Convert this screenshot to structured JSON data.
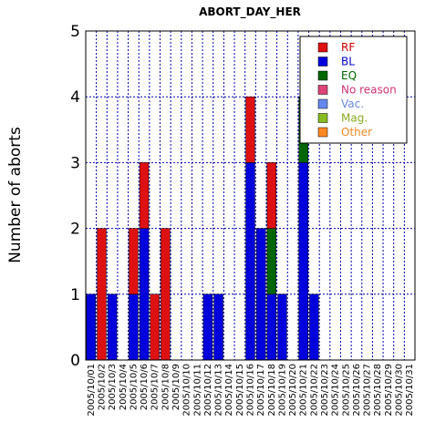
{
  "chart_data": {
    "type": "bar",
    "stacked": true,
    "title": "ABORT_DAY_HER",
    "xlabel": "",
    "ylabel": "Number of aborts",
    "ylim": [
      0,
      5
    ],
    "yticks": [
      0,
      1,
      2,
      3,
      4,
      5
    ],
    "grid": true,
    "legend_position": "top-right",
    "categories": [
      "2005/10/01",
      "2005/10/02",
      "2005/10/03",
      "2005/10/04",
      "2005/10/05",
      "2005/10/06",
      "2005/10/07",
      "2005/10/08",
      "2005/10/09",
      "2005/10/10",
      "2005/10/11",
      "2005/10/12",
      "2005/10/13",
      "2005/10/14",
      "2005/10/15",
      "2005/10/16",
      "2005/10/17",
      "2005/10/18",
      "2005/10/19",
      "2005/10/20",
      "2005/10/21",
      "2005/10/22",
      "2005/10/23",
      "2005/10/24",
      "2005/10/25",
      "2005/10/26",
      "2005/10/27",
      "2005/10/28",
      "2005/10/29",
      "2005/10/30",
      "2005/10/31"
    ],
    "x_tick_labels": [
      "2005/10/01",
      "2005/10/2",
      "2005/10/3",
      "2005/10/4",
      "2005/10/5",
      "2005/10/6",
      "2005/10/7",
      "2005/10/8",
      "2005/10/9",
      "2005/10/10",
      "2005/10/11",
      "2005/10/12",
      "2005/10/13",
      "2005/10/14",
      "2005/10/15",
      "2005/10/16",
      "2005/10/17",
      "2005/10/18",
      "2005/10/19",
      "2005/10/20",
      "2005/10/21",
      "2005/10/22",
      "2005/10/23",
      "2005/10/24",
      "2005/10/25",
      "2005/10/26",
      "2005/10/27",
      "2005/10/28",
      "2005/10/29",
      "2005/10/30",
      "2005/10/31"
    ],
    "series": [
      {
        "name": "BL",
        "color": "#0000dd",
        "text_color": "#0000cc",
        "values": [
          1,
          0,
          1,
          0,
          1,
          2,
          0,
          0,
          0,
          0,
          0,
          1,
          1,
          0,
          0,
          3,
          2,
          1,
          1,
          0,
          3,
          1,
          0,
          0,
          0,
          0,
          0,
          0,
          0,
          0,
          0
        ]
      },
      {
        "name": "EQ",
        "color": "#006600",
        "text_color": "#006600",
        "values": [
          0,
          0,
          0,
          0,
          0,
          0,
          0,
          0,
          0,
          0,
          0,
          0,
          0,
          0,
          0,
          0,
          0,
          1,
          0,
          0,
          1,
          0,
          0,
          0,
          0,
          0,
          0,
          0,
          0,
          0,
          0
        ]
      },
      {
        "name": "RF",
        "color": "#dd1111",
        "text_color": "#cc0000",
        "values": [
          0,
          2,
          0,
          0,
          1,
          1,
          1,
          2,
          0,
          0,
          0,
          0,
          0,
          0,
          0,
          1,
          0,
          1,
          0,
          0,
          0,
          0,
          0,
          0,
          0,
          0,
          0,
          0,
          0,
          0,
          0
        ]
      },
      {
        "name": "No reason",
        "color": "#dd4477",
        "text_color": "#cc3377",
        "values": [
          0,
          0,
          0,
          0,
          0,
          0,
          0,
          0,
          0,
          0,
          0,
          0,
          0,
          0,
          0,
          0,
          0,
          0,
          0,
          0,
          0,
          0,
          0,
          0,
          0,
          0,
          0,
          0,
          0,
          0,
          0
        ]
      },
      {
        "name": "Vac.",
        "color": "#6688ee",
        "text_color": "#6688dd",
        "values": [
          0,
          0,
          0,
          0,
          0,
          0,
          0,
          0,
          0,
          0,
          0,
          0,
          0,
          0,
          0,
          0,
          0,
          0,
          0,
          0,
          0,
          0,
          0,
          0,
          0,
          0,
          0,
          0,
          0,
          0,
          0
        ]
      },
      {
        "name": "Mag.",
        "color": "#88bb22",
        "text_color": "#88aa22",
        "values": [
          0,
          0,
          0,
          0,
          0,
          0,
          0,
          0,
          0,
          0,
          0,
          0,
          0,
          0,
          0,
          0,
          0,
          0,
          0,
          0,
          0,
          0,
          0,
          0,
          0,
          0,
          0,
          0,
          0,
          0,
          0
        ]
      },
      {
        "name": "Other",
        "color": "#ff8822",
        "text_color": "#ee8822",
        "values": [
          0,
          0,
          0,
          0,
          0,
          0,
          0,
          0,
          0,
          0,
          0,
          0,
          0,
          0,
          0,
          0,
          0,
          0,
          0,
          0,
          0,
          0,
          0,
          0,
          0,
          0,
          0,
          0,
          0,
          0,
          0
        ]
      }
    ],
    "legend_order": [
      "RF",
      "BL",
      "EQ",
      "No reason",
      "Vac.",
      "Mag.",
      "Other"
    ]
  }
}
